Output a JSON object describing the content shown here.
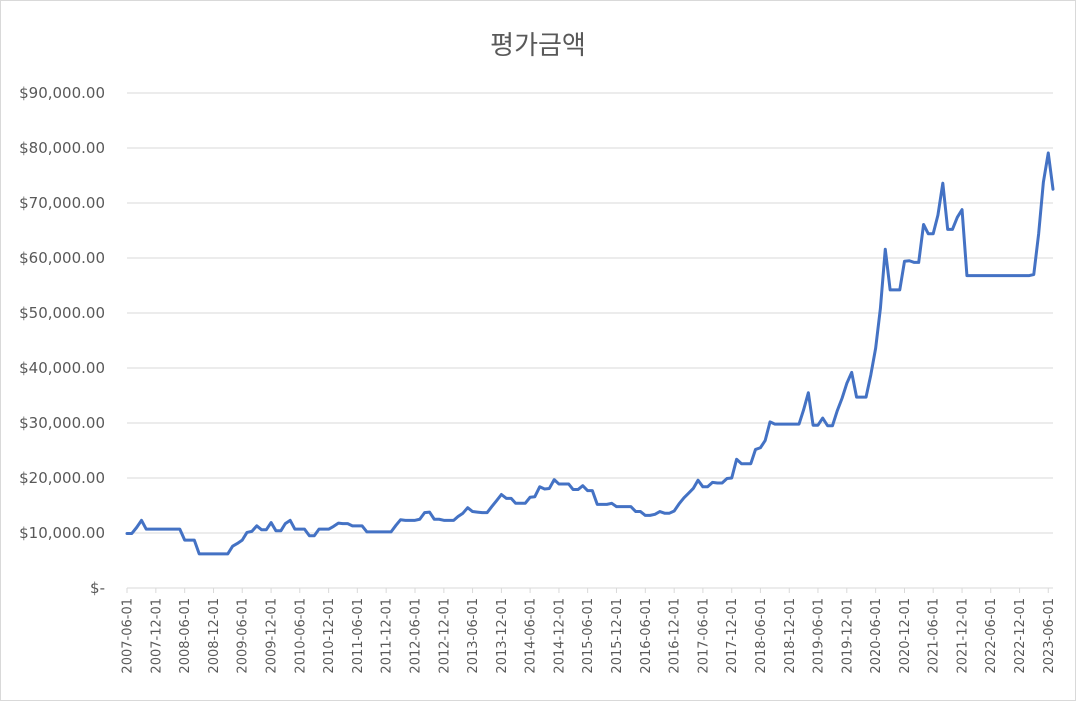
{
  "chart_data": {
    "type": "line",
    "title": "평가금액",
    "xlabel": "",
    "ylabel": "",
    "ylim": [
      0,
      90000
    ],
    "y_ticks": [
      0,
      10000,
      20000,
      30000,
      40000,
      50000,
      60000,
      70000,
      80000,
      90000
    ],
    "y_tick_labels": [
      "$-",
      "$10,000.00",
      "$20,000.00",
      "$30,000.00",
      "$40,000.00",
      "$50,000.00",
      "$60,000.00",
      "$70,000.00",
      "$80,000.00",
      "$90,000.00"
    ],
    "x_tick_labels": [
      "2007-06-01",
      "2007-12-01",
      "2008-06-01",
      "2008-12-01",
      "2009-06-01",
      "2009-12-01",
      "2010-06-01",
      "2010-12-01",
      "2011-06-01",
      "2011-12-01",
      "2012-06-01",
      "2012-12-01",
      "2013-06-01",
      "2013-12-01",
      "2014-06-01",
      "2014-12-01",
      "2015-06-01",
      "2015-12-01",
      "2016-06-01",
      "2016-12-01",
      "2017-06-01",
      "2017-12-01",
      "2018-06-01",
      "2018-12-01",
      "2019-06-01",
      "2019-12-01",
      "2020-06-01",
      "2020-12-01",
      "2021-06-01",
      "2021-12-01",
      "2022-06-01",
      "2022-12-01",
      "2023-06-01"
    ],
    "grid": true,
    "legend": "none",
    "line_color": "#4472c4",
    "x_start": "2007-06-01",
    "x_end": "2023-07-01",
    "series": [
      {
        "values": [
          [
            "2007-06-01",
            9900
          ],
          [
            "2007-07-01",
            9900
          ],
          [
            "2007-08-01",
            11000
          ],
          [
            "2007-09-01",
            12300
          ],
          [
            "2007-10-01",
            10700
          ],
          [
            "2007-11-01",
            10700
          ],
          [
            "2007-12-01",
            10700
          ],
          [
            "2008-01-01",
            10700
          ],
          [
            "2008-02-01",
            10700
          ],
          [
            "2008-03-01",
            10700
          ],
          [
            "2008-04-01",
            10700
          ],
          [
            "2008-05-01",
            10700
          ],
          [
            "2008-06-01",
            8700
          ],
          [
            "2008-07-01",
            8700
          ],
          [
            "2008-08-01",
            8700
          ],
          [
            "2008-09-01",
            6200
          ],
          [
            "2008-10-01",
            6200
          ],
          [
            "2008-11-01",
            6200
          ],
          [
            "2008-12-01",
            6200
          ],
          [
            "2009-01-01",
            6200
          ],
          [
            "2009-02-01",
            6200
          ],
          [
            "2009-03-01",
            6200
          ],
          [
            "2009-04-01",
            7600
          ],
          [
            "2009-05-01",
            8100
          ],
          [
            "2009-06-01",
            8700
          ],
          [
            "2009-07-01",
            10100
          ],
          [
            "2009-08-01",
            10300
          ],
          [
            "2009-09-01",
            11300
          ],
          [
            "2009-10-01",
            10600
          ],
          [
            "2009-11-01",
            10600
          ],
          [
            "2009-12-01",
            11900
          ],
          [
            "2010-01-01",
            10400
          ],
          [
            "2010-02-01",
            10400
          ],
          [
            "2010-03-01",
            11700
          ],
          [
            "2010-04-01",
            12300
          ],
          [
            "2010-05-01",
            10700
          ],
          [
            "2010-06-01",
            10700
          ],
          [
            "2010-07-01",
            10700
          ],
          [
            "2010-08-01",
            9500
          ],
          [
            "2010-09-01",
            9500
          ],
          [
            "2010-10-01",
            10700
          ],
          [
            "2010-11-01",
            10700
          ],
          [
            "2010-12-01",
            10700
          ],
          [
            "2011-01-01",
            11200
          ],
          [
            "2011-02-01",
            11800
          ],
          [
            "2011-03-01",
            11700
          ],
          [
            "2011-04-01",
            11700
          ],
          [
            "2011-05-01",
            11300
          ],
          [
            "2011-06-01",
            11300
          ],
          [
            "2011-07-01",
            11300
          ],
          [
            "2011-08-01",
            10200
          ],
          [
            "2011-09-01",
            10200
          ],
          [
            "2011-10-01",
            10200
          ],
          [
            "2011-11-01",
            10200
          ],
          [
            "2011-12-01",
            10200
          ],
          [
            "2012-01-01",
            10200
          ],
          [
            "2012-02-01",
            11400
          ],
          [
            "2012-03-01",
            12400
          ],
          [
            "2012-04-01",
            12300
          ],
          [
            "2012-05-01",
            12300
          ],
          [
            "2012-06-01",
            12300
          ],
          [
            "2012-07-01",
            12500
          ],
          [
            "2012-08-01",
            13700
          ],
          [
            "2012-09-01",
            13800
          ],
          [
            "2012-10-01",
            12500
          ],
          [
            "2012-11-01",
            12500
          ],
          [
            "2012-12-01",
            12300
          ],
          [
            "2013-01-01",
            12300
          ],
          [
            "2013-02-01",
            12300
          ],
          [
            "2013-03-01",
            13000
          ],
          [
            "2013-04-01",
            13600
          ],
          [
            "2013-05-01",
            14600
          ],
          [
            "2013-06-01",
            13900
          ],
          [
            "2013-07-01",
            13800
          ],
          [
            "2013-08-01",
            13700
          ],
          [
            "2013-09-01",
            13700
          ],
          [
            "2013-10-01",
            14800
          ],
          [
            "2013-11-01",
            15900
          ],
          [
            "2013-12-01",
            17000
          ],
          [
            "2014-01-01",
            16300
          ],
          [
            "2014-02-01",
            16300
          ],
          [
            "2014-03-01",
            15400
          ],
          [
            "2014-04-01",
            15400
          ],
          [
            "2014-05-01",
            15400
          ],
          [
            "2014-06-01",
            16500
          ],
          [
            "2014-07-01",
            16600
          ],
          [
            "2014-08-01",
            18400
          ],
          [
            "2014-09-01",
            18000
          ],
          [
            "2014-10-01",
            18100
          ],
          [
            "2014-11-01",
            19700
          ],
          [
            "2014-12-01",
            18900
          ],
          [
            "2015-01-01",
            18900
          ],
          [
            "2015-02-01",
            18900
          ],
          [
            "2015-03-01",
            17900
          ],
          [
            "2015-04-01",
            17900
          ],
          [
            "2015-05-01",
            18600
          ],
          [
            "2015-06-01",
            17700
          ],
          [
            "2015-07-01",
            17700
          ],
          [
            "2015-08-01",
            15200
          ],
          [
            "2015-09-01",
            15200
          ],
          [
            "2015-10-01",
            15200
          ],
          [
            "2015-11-01",
            15400
          ],
          [
            "2015-12-01",
            14800
          ],
          [
            "2016-01-01",
            14800
          ],
          [
            "2016-02-01",
            14800
          ],
          [
            "2016-03-01",
            14800
          ],
          [
            "2016-04-01",
            13900
          ],
          [
            "2016-05-01",
            13900
          ],
          [
            "2016-06-01",
            13200
          ],
          [
            "2016-07-01",
            13200
          ],
          [
            "2016-08-01",
            13400
          ],
          [
            "2016-09-01",
            13900
          ],
          [
            "2016-10-01",
            13600
          ],
          [
            "2016-11-01",
            13600
          ],
          [
            "2016-12-01",
            14000
          ],
          [
            "2017-01-01",
            15300
          ],
          [
            "2017-02-01",
            16400
          ],
          [
            "2017-03-01",
            17200
          ],
          [
            "2017-04-01",
            18100
          ],
          [
            "2017-05-01",
            19600
          ],
          [
            "2017-06-01",
            18400
          ],
          [
            "2017-07-01",
            18400
          ],
          [
            "2017-08-01",
            19200
          ],
          [
            "2017-09-01",
            19100
          ],
          [
            "2017-10-01",
            19100
          ],
          [
            "2017-11-01",
            19900
          ],
          [
            "2017-12-01",
            20000
          ],
          [
            "2018-01-01",
            23400
          ],
          [
            "2018-02-01",
            22600
          ],
          [
            "2018-03-01",
            22600
          ],
          [
            "2018-04-01",
            22600
          ],
          [
            "2018-05-01",
            25200
          ],
          [
            "2018-06-01",
            25500
          ],
          [
            "2018-07-01",
            26800
          ],
          [
            "2018-08-01",
            30200
          ],
          [
            "2018-09-01",
            29800
          ],
          [
            "2018-10-01",
            29800
          ],
          [
            "2018-11-01",
            29800
          ],
          [
            "2018-12-01",
            29800
          ],
          [
            "2019-01-01",
            29800
          ],
          [
            "2019-02-01",
            29800
          ],
          [
            "2019-03-01",
            32300
          ],
          [
            "2019-04-01",
            35500
          ],
          [
            "2019-05-01",
            29600
          ],
          [
            "2019-06-01",
            29600
          ],
          [
            "2019-07-01",
            30900
          ],
          [
            "2019-08-01",
            29500
          ],
          [
            "2019-09-01",
            29500
          ],
          [
            "2019-10-01",
            32200
          ],
          [
            "2019-11-01",
            34500
          ],
          [
            "2019-12-01",
            37200
          ],
          [
            "2020-01-01",
            39200
          ],
          [
            "2020-02-01",
            34700
          ],
          [
            "2020-03-01",
            34700
          ],
          [
            "2020-04-01",
            34700
          ],
          [
            "2020-05-01",
            38700
          ],
          [
            "2020-06-01",
            43600
          ],
          [
            "2020-07-01",
            50800
          ],
          [
            "2020-08-01",
            61600
          ],
          [
            "2020-09-01",
            54200
          ],
          [
            "2020-10-01",
            54200
          ],
          [
            "2020-11-01",
            54200
          ],
          [
            "2020-12-01",
            59400
          ],
          [
            "2021-01-01",
            59500
          ],
          [
            "2021-02-01",
            59200
          ],
          [
            "2021-03-01",
            59200
          ],
          [
            "2021-04-01",
            66100
          ],
          [
            "2021-05-01",
            64400
          ],
          [
            "2021-06-01",
            64400
          ],
          [
            "2021-07-01",
            67800
          ],
          [
            "2021-08-01",
            73600
          ],
          [
            "2021-09-01",
            65200
          ],
          [
            "2021-10-01",
            65200
          ],
          [
            "2021-11-01",
            67400
          ],
          [
            "2021-12-01",
            68800
          ],
          [
            "2022-01-01",
            56800
          ],
          [
            "2022-02-01",
            56800
          ],
          [
            "2022-03-01",
            56800
          ],
          [
            "2022-04-01",
            56800
          ],
          [
            "2022-05-01",
            56800
          ],
          [
            "2022-06-01",
            56800
          ],
          [
            "2022-07-01",
            56800
          ],
          [
            "2022-08-01",
            56800
          ],
          [
            "2022-09-01",
            56800
          ],
          [
            "2022-10-01",
            56800
          ],
          [
            "2022-11-01",
            56800
          ],
          [
            "2022-12-01",
            56800
          ],
          [
            "2023-01-01",
            56800
          ],
          [
            "2023-02-01",
            56800
          ],
          [
            "2023-03-01",
            57000
          ],
          [
            "2023-04-01",
            64400
          ],
          [
            "2023-05-01",
            73800
          ],
          [
            "2023-06-01",
            79100
          ],
          [
            "2023-07-01",
            72500
          ]
        ]
      }
    ]
  }
}
